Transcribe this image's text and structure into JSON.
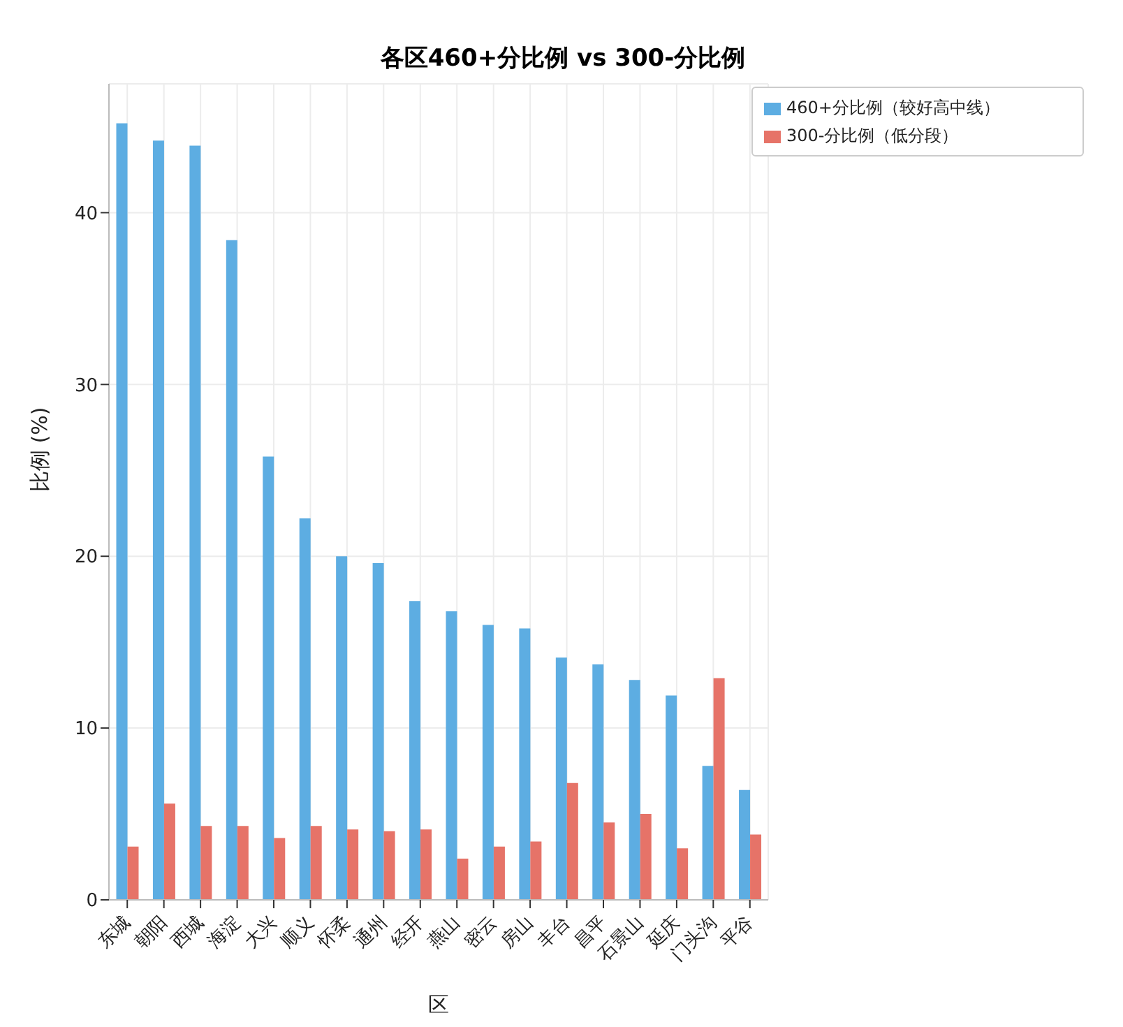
{
  "chart_data": {
    "type": "bar",
    "title": "各区460+分比例 vs 300-分比例",
    "xlabel": "区",
    "ylabel": "比例 (%)",
    "categories": [
      "东城",
      "朝阳",
      "西城",
      "海淀",
      "大兴",
      "顺义",
      "怀柔",
      "通州",
      "经开",
      "燕山",
      "密云",
      "房山",
      "丰台",
      "昌平",
      "石景山",
      "延庆",
      "门头沟",
      "平谷"
    ],
    "series": [
      {
        "name": "460+分比例（较好高中线）",
        "color": "#5dade2",
        "values": [
          45.2,
          44.2,
          43.9,
          38.4,
          25.8,
          22.2,
          20.0,
          19.6,
          17.4,
          16.8,
          16.0,
          15.8,
          14.1,
          13.7,
          12.8,
          11.9,
          7.8,
          6.4
        ]
      },
      {
        "name": "300-分比例（低分段）",
        "color": "#e67368",
        "values": [
          3.1,
          5.6,
          4.3,
          4.3,
          3.6,
          4.3,
          4.1,
          4.0,
          4.1,
          2.4,
          3.1,
          3.4,
          6.8,
          4.5,
          5.0,
          3.0,
          12.9,
          3.8
        ]
      }
    ],
    "ylim": [
      0,
      47.5
    ],
    "yticks": [
      0,
      10,
      20,
      30,
      40
    ],
    "grid": true,
    "legend": "top right"
  }
}
